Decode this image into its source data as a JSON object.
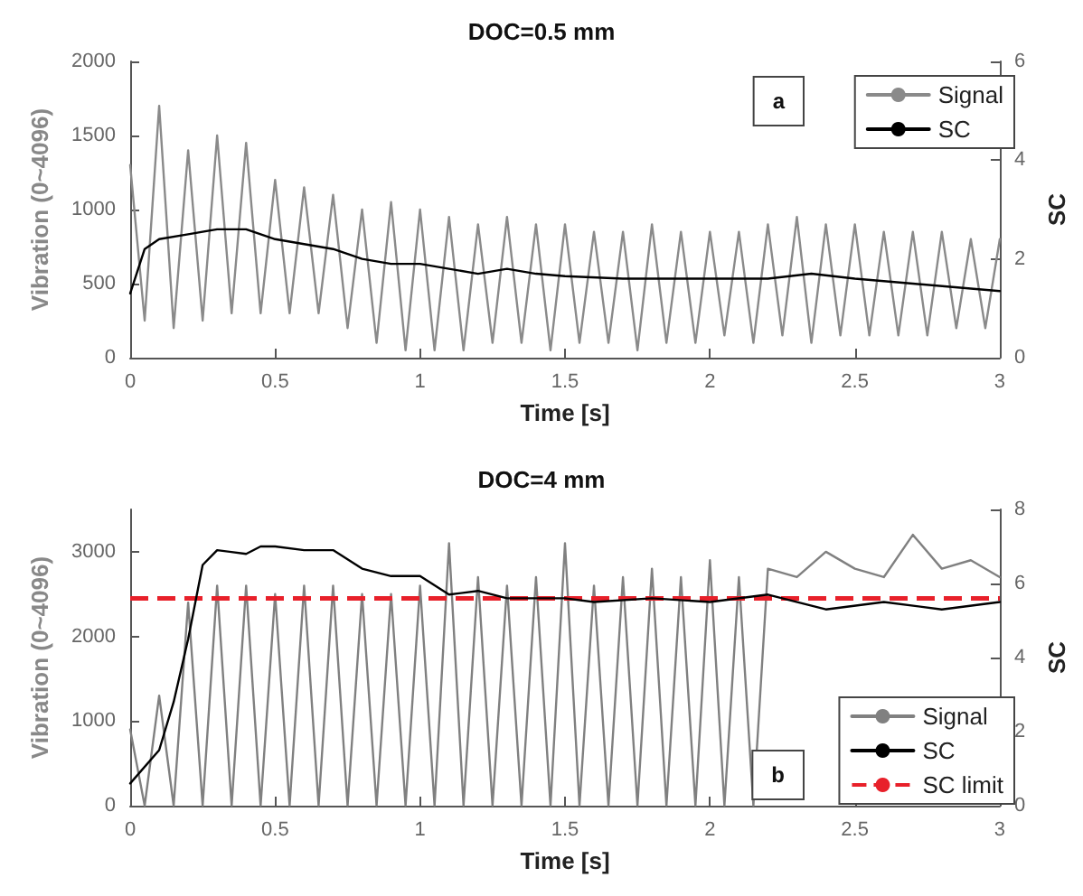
{
  "chart_data": [
    {
      "type": "line",
      "title": "DOC=0.5 mm",
      "xlabel": "Time [s]",
      "ylabel": "Vibration (0~4096)",
      "y2label": "SC",
      "annotations": [
        "a"
      ],
      "xlim": [
        0,
        3
      ],
      "xticks": [
        0,
        0.5,
        1,
        1.5,
        2,
        2.5,
        3
      ],
      "ylim": [
        0,
        2000
      ],
      "yticks": [
        0,
        500,
        1000,
        1500,
        2000
      ],
      "y2lim": [
        0,
        6
      ],
      "y2ticks": [
        0,
        2,
        4,
        6
      ],
      "grid": false,
      "legend": "top right",
      "marker": "none",
      "series": [
        {
          "name": "Signal",
          "color": "#8a8a8a",
          "x": [
            0,
            0.05,
            0.1,
            0.15,
            0.2,
            0.25,
            0.3,
            0.35,
            0.4,
            0.45,
            0.5,
            0.55,
            0.6,
            0.65,
            0.7,
            0.75,
            0.8,
            0.85,
            0.9,
            0.95,
            1,
            1.05,
            1.1,
            1.15,
            1.2,
            1.25,
            1.3,
            1.35,
            1.4,
            1.45,
            1.5,
            1.55,
            1.6,
            1.65,
            1.7,
            1.75,
            1.8,
            1.85,
            1.9,
            1.95,
            2,
            2.05,
            2.1,
            2.15,
            2.2,
            2.25,
            2.3,
            2.35,
            2.4,
            2.45,
            2.5,
            2.55,
            2.6,
            2.65,
            2.7,
            2.75,
            2.8,
            2.85,
            2.9,
            2.95,
            3
          ],
          "values": [
            1300,
            250,
            1700,
            200,
            1400,
            250,
            1500,
            300,
            1450,
            300,
            1200,
            300,
            1150,
            300,
            1100,
            200,
            1000,
            100,
            1050,
            50,
            1000,
            50,
            950,
            50,
            900,
            100,
            950,
            100,
            900,
            50,
            900,
            100,
            850,
            100,
            850,
            50,
            900,
            100,
            850,
            100,
            850,
            150,
            850,
            100,
            900,
            150,
            950,
            100,
            900,
            150,
            900,
            150,
            850,
            150,
            850,
            150,
            850,
            200,
            800,
            200,
            800
          ]
        },
        {
          "name": "SC",
          "color": "#000000",
          "axis": "y2",
          "x": [
            0,
            0.05,
            0.1,
            0.2,
            0.3,
            0.4,
            0.5,
            0.6,
            0.7,
            0.8,
            0.9,
            1,
            1.1,
            1.2,
            1.3,
            1.4,
            1.5,
            1.7,
            2,
            2.2,
            2.35,
            2.5,
            2.7,
            2.9,
            3
          ],
          "values": [
            1.3,
            2.2,
            2.4,
            2.5,
            2.6,
            2.6,
            2.4,
            2.3,
            2.2,
            2,
            1.9,
            1.9,
            1.8,
            1.7,
            1.8,
            1.7,
            1.65,
            1.6,
            1.6,
            1.6,
            1.7,
            1.6,
            1.5,
            1.4,
            1.35
          ]
        }
      ]
    },
    {
      "type": "line",
      "title": "DOC=4 mm",
      "xlabel": "Time [s]",
      "ylabel": "Vibration (0~4096)",
      "y2label": "SC",
      "annotations": [
        "b"
      ],
      "xlim": [
        0,
        3
      ],
      "xticks": [
        0,
        0.5,
        1,
        1.5,
        2,
        2.5,
        3
      ],
      "ylim": [
        0,
        3500
      ],
      "yticks": [
        0,
        1000,
        2000,
        3000
      ],
      "y2lim": [
        0,
        8
      ],
      "y2ticks": [
        0,
        2,
        4,
        6,
        8
      ],
      "grid": false,
      "legend": "bottom right",
      "marker": "none",
      "ref_lines": [
        {
          "axis": "y2",
          "value": 5.6,
          "label": "SC limit",
          "color": "#e8202a",
          "line_style": "dashed"
        }
      ],
      "series": [
        {
          "name": "Signal",
          "color": "#808080",
          "x": [
            0,
            0.05,
            0.1,
            0.15,
            0.2,
            0.25,
            0.3,
            0.35,
            0.4,
            0.45,
            0.5,
            0.55,
            0.6,
            0.65,
            0.7,
            0.75,
            0.8,
            0.85,
            0.9,
            0.95,
            1,
            1.05,
            1.1,
            1.15,
            1.2,
            1.25,
            1.3,
            1.35,
            1.4,
            1.45,
            1.5,
            1.55,
            1.6,
            1.65,
            1.7,
            1.75,
            1.8,
            1.85,
            1.9,
            1.95,
            2,
            2.05,
            2.1,
            2.15,
            2.2,
            2.25,
            2.3,
            2.35,
            2.4,
            2.45,
            2.5,
            2.55,
            2.6,
            2.65,
            2.7,
            2.75,
            2.8,
            2.85,
            2.9,
            2.95,
            3
          ],
          "values": [
            900,
            0,
            1300,
            0,
            2400,
            0,
            2600,
            0,
            2600,
            0,
            2500,
            0,
            2600,
            0,
            2600,
            0,
            2500,
            0,
            2500,
            0,
            2600,
            0,
            3100,
            0,
            2700,
            0,
            2600,
            0,
            2700,
            0,
            3100,
            0,
            2600,
            0,
            2700,
            0,
            2800,
            0,
            2700,
            0,
            2900,
            0,
            2700,
            0,
            2800,
            null,
            2700,
            null,
            3000,
            null,
            2800,
            null,
            2700,
            null,
            3200,
            null,
            2800,
            null,
            2900,
            null,
            2700
          ]
        },
        {
          "name": "SC",
          "color": "#000000",
          "axis": "y2",
          "x": [
            0,
            0.1,
            0.15,
            0.2,
            0.25,
            0.3,
            0.4,
            0.45,
            0.5,
            0.6,
            0.7,
            0.8,
            0.9,
            1,
            1.1,
            1.2,
            1.3,
            1.5,
            1.6,
            1.8,
            2,
            2.2,
            2.4,
            2.6,
            2.8,
            3
          ],
          "values": [
            0.6,
            1.5,
            2.8,
            4.5,
            6.5,
            6.9,
            6.8,
            7,
            7,
            6.9,
            6.9,
            6.4,
            6.2,
            6.2,
            5.7,
            5.8,
            5.6,
            5.6,
            5.5,
            5.6,
            5.5,
            5.7,
            5.3,
            5.5,
            5.3,
            5.5
          ]
        }
      ]
    }
  ]
}
